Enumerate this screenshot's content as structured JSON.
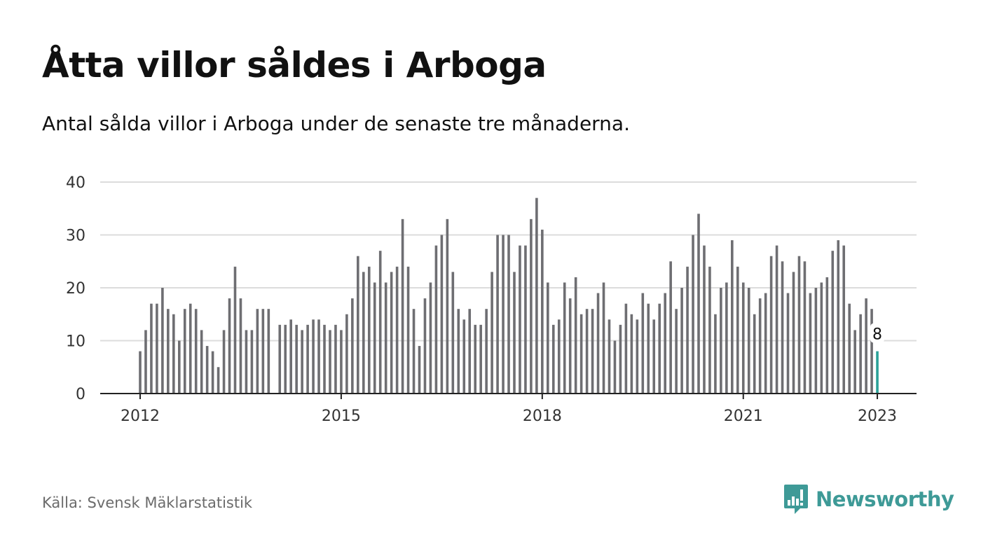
{
  "title": "Åtta villor såldes i Arboga",
  "subtitle": "Antal sålda villor i Arboga under de senaste tre månaderna.",
  "source": "Källa: Svensk Mäklarstatistik",
  "brand": {
    "name": "Newsworthy",
    "logo_icon": "bar-chart-speech-bubble-icon"
  },
  "colors": {
    "bar": "#6e6e72",
    "highlight": "#2aa198",
    "grid": "#dcdcdc",
    "axis": "#222222",
    "brand": "#3e9a97"
  },
  "chart_data": {
    "type": "bar",
    "title": "Åtta villor såldes i Arboga",
    "subtitle": "Antal sålda villor i Arboga under de senaste tre månaderna.",
    "xlabel": "",
    "ylabel": "",
    "ylim": [
      0,
      40
    ],
    "yticks": [
      0,
      10,
      20,
      30,
      40
    ],
    "xticks": [
      "2012",
      "2015",
      "2018",
      "2021",
      "2023"
    ],
    "grid": true,
    "start": "2012-01",
    "frequency": "monthly",
    "values": [
      8,
      12,
      17,
      17,
      20,
      16,
      15,
      10,
      16,
      17,
      16,
      12,
      9,
      8,
      5,
      12,
      18,
      24,
      18,
      12,
      12,
      16,
      16,
      16,
      null,
      13,
      13,
      14,
      13,
      12,
      13,
      14,
      14,
      13,
      12,
      13,
      12,
      15,
      18,
      26,
      23,
      24,
      21,
      27,
      21,
      23,
      24,
      33,
      24,
      16,
      9,
      18,
      21,
      28,
      30,
      33,
      23,
      16,
      14,
      16,
      13,
      13,
      16,
      23,
      30,
      30,
      30,
      23,
      28,
      28,
      33,
      37,
      31,
      21,
      13,
      14,
      21,
      18,
      22,
      15,
      16,
      16,
      19,
      21,
      14,
      10,
      13,
      17,
      15,
      14,
      19,
      17,
      14,
      17,
      19,
      25,
      16,
      20,
      24,
      30,
      34,
      28,
      24,
      15,
      20,
      21,
      29,
      24,
      21,
      20,
      15,
      18,
      19,
      26,
      28,
      25,
      19,
      23,
      26,
      25,
      19,
      20,
      21,
      22,
      27,
      29,
      28,
      17,
      12,
      15,
      18,
      16,
      8
    ],
    "highlight": {
      "label": "8",
      "value": 8
    }
  }
}
